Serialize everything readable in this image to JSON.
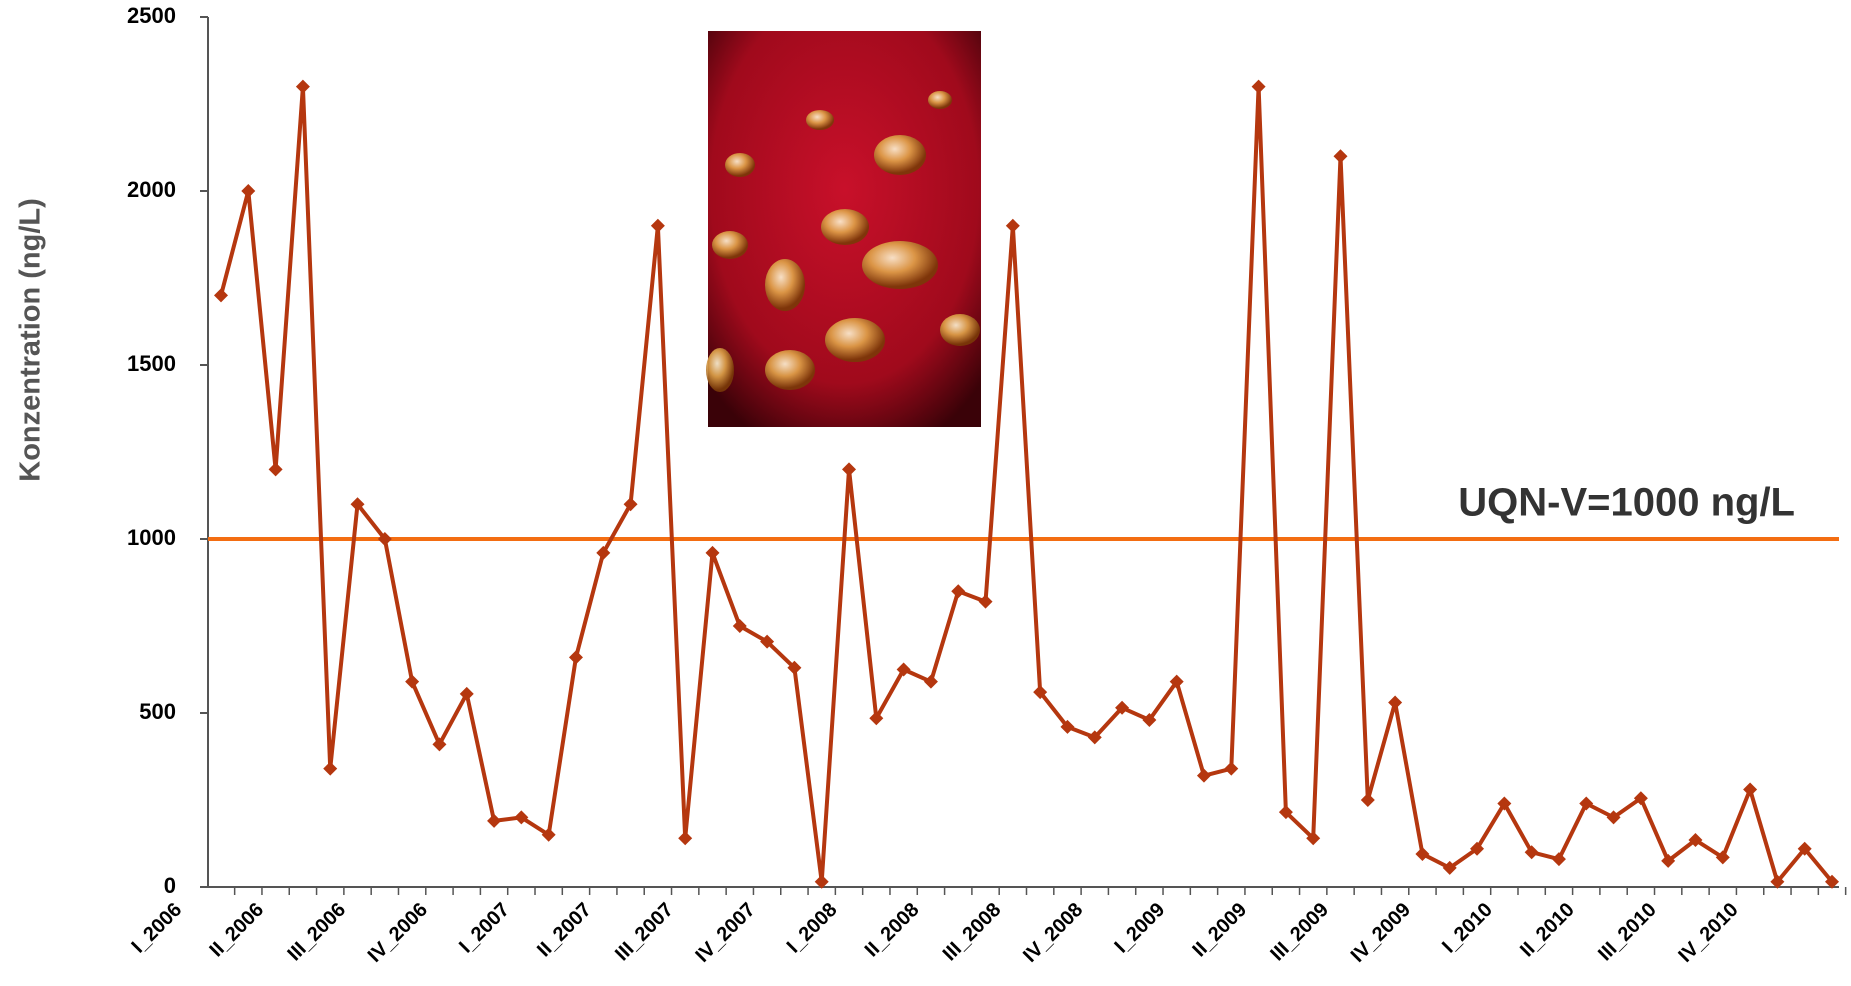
{
  "chart_data": {
    "type": "line",
    "y_label": "Konzentration (ng/L)",
    "categories": [
      "I_2006",
      null,
      null,
      "II_2006",
      null,
      null,
      "III_2006",
      null,
      null,
      "IV_2006",
      null,
      null,
      "I_2007",
      null,
      null,
      "II_2007",
      null,
      null,
      "III_2007",
      null,
      null,
      "IV_2007",
      null,
      null,
      "I_2008",
      null,
      null,
      "II_2008",
      null,
      null,
      "III_2008",
      null,
      null,
      "IV_2008",
      null,
      null,
      "I_2009",
      null,
      null,
      "II_2009",
      null,
      null,
      "III_2009",
      null,
      null,
      "IV_2009",
      null,
      null,
      "I_2010",
      null,
      null,
      "II_2010",
      null,
      null,
      "III_2010",
      null,
      null,
      "IV_2010",
      null,
      null
    ],
    "values": [
      1700,
      2000,
      1200,
      2300,
      340,
      1100,
      1000,
      590,
      410,
      555,
      190,
      200,
      150,
      660,
      960,
      1100,
      1900,
      140,
      960,
      750,
      705,
      630,
      15,
      1200,
      485,
      625,
      590,
      850,
      820,
      1900,
      560,
      460,
      430,
      515,
      480,
      590,
      320,
      340,
      2300,
      215,
      140,
      2100,
      250,
      530,
      95,
      55,
      110,
      240,
      100,
      80,
      240,
      200,
      255,
      75,
      135,
      85,
      280,
      15,
      110,
      15
    ],
    "color": "#b5370f",
    "ylim": [
      0,
      2500
    ],
    "yticks": [
      0,
      500,
      1000,
      1500,
      2000,
      2500
    ],
    "reference_line": {
      "value": 1000,
      "label": "UQN-V=1000 ng/L",
      "color": "#f36d12"
    }
  }
}
